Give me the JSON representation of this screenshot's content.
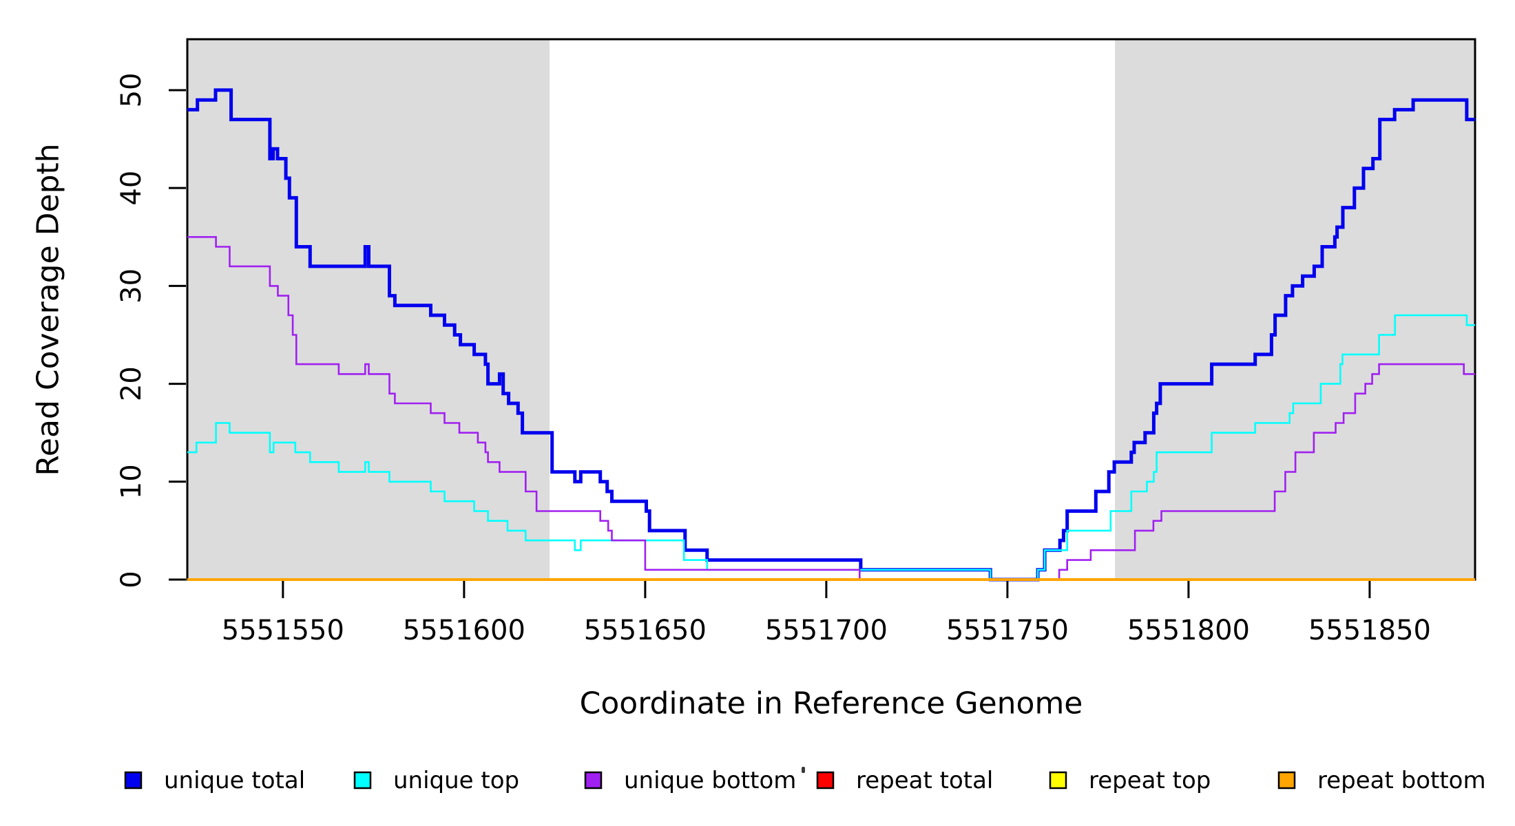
{
  "labels": {
    "ylabel": "Read Coverage Depth",
    "xlabel": "Coordinate in Reference Genome"
  },
  "axes": {
    "x_ticks": [
      5551550,
      5551600,
      5551650,
      5551700,
      5551750,
      5551800,
      5551850
    ],
    "y_ticks": [
      0,
      10,
      20,
      30,
      40,
      50
    ],
    "xlim": [
      5551523.6,
      5551879.1
    ],
    "ylim": [
      0,
      55.2
    ]
  },
  "plot": {
    "band_color": "#DCDCDC",
    "background": "#FFFFFF",
    "border_color": "#000000",
    "shaded_regions": [
      {
        "from": 5551523.6,
        "to": 5551623.6
      },
      {
        "from": 5551779.7,
        "to": 5551879.1
      }
    ]
  },
  "legend": {
    "items": [
      {
        "id": "unique-total",
        "label": "unique total",
        "color": "#0000EE"
      },
      {
        "id": "unique-top",
        "label": "unique top",
        "color": "#00FFFF"
      },
      {
        "id": "unique-bottom",
        "label": "unique bottom",
        "color": "#A020F0"
      },
      {
        "id": "repeat-total",
        "label": "repeat total",
        "color": "#FF0000"
      },
      {
        "id": "repeat-top",
        "label": "repeat top",
        "color": "#FFFF00"
      },
      {
        "id": "repeat-bottom",
        "label": "repeat bottom",
        "color": "#FFA500"
      }
    ]
  },
  "chart_data": {
    "type": "step-line",
    "title": "",
    "xlabel": "Coordinate in Reference Genome",
    "ylabel": "Read Coverage Depth",
    "xlim": [
      5551523.6,
      5551879.1
    ],
    "ylim": [
      0,
      55.2
    ],
    "grid": false,
    "legend_position": "bottom",
    "series": [
      {
        "id": "unique-total",
        "name": "unique total",
        "color": "#0000EE",
        "width": 5,
        "points": [
          [
            5551523.6,
            48
          ],
          [
            5551526.4,
            49
          ],
          [
            5551531.4,
            50
          ],
          [
            5551535.7,
            47
          ],
          [
            5551546.4,
            43
          ],
          [
            5551547.3,
            44
          ],
          [
            5551548.5,
            43
          ],
          [
            5551550.8,
            41
          ],
          [
            5551551.8,
            39
          ],
          [
            5551553.7,
            34
          ],
          [
            5551557.5,
            32
          ],
          [
            5551572.7,
            34
          ],
          [
            5551573.7,
            32
          ],
          [
            5551579.4,
            29
          ],
          [
            5551580.9,
            28
          ],
          [
            5551590.8,
            27
          ],
          [
            5551594.6,
            26
          ],
          [
            5551597.4,
            25
          ],
          [
            5551599.0,
            24
          ],
          [
            5551602.8,
            23
          ],
          [
            5551605.9,
            22
          ],
          [
            5551606.6,
            20
          ],
          [
            5551609.8,
            21
          ],
          [
            5551610.8,
            19
          ],
          [
            5551612.3,
            18
          ],
          [
            5551614.9,
            17
          ],
          [
            5551616.1,
            15
          ],
          [
            5551624.3,
            11
          ],
          [
            5551630.6,
            10
          ],
          [
            5551632.2,
            11
          ],
          [
            5551637.6,
            10
          ],
          [
            5551639.5,
            9
          ],
          [
            5551640.8,
            8
          ],
          [
            5551650.3,
            7
          ],
          [
            5551651.2,
            5
          ],
          [
            5551661.0,
            3
          ],
          [
            5551667.1,
            2
          ],
          [
            5551709.5,
            1
          ],
          [
            5551745.3,
            0
          ],
          [
            5551758.4,
            1
          ],
          [
            5551760.3,
            3
          ],
          [
            5551764.5,
            4
          ],
          [
            5551765.5,
            5
          ],
          [
            5551766.5,
            7
          ],
          [
            5551774.4,
            9
          ],
          [
            5551778.0,
            11
          ],
          [
            5551779.5,
            12
          ],
          [
            5551784.2,
            13
          ],
          [
            5551785.0,
            14
          ],
          [
            5551788.0,
            15
          ],
          [
            5551790.4,
            17
          ],
          [
            5551791.2,
            18
          ],
          [
            5551792.2,
            20
          ],
          [
            5551806.4,
            22
          ],
          [
            5551818.4,
            23
          ],
          [
            5551822.9,
            25
          ],
          [
            5551823.9,
            27
          ],
          [
            5551826.8,
            29
          ],
          [
            5551828.7,
            30
          ],
          [
            5551831.5,
            31
          ],
          [
            5551834.7,
            32
          ],
          [
            5551836.9,
            34
          ],
          [
            5551840.4,
            35
          ],
          [
            5551841.0,
            36
          ],
          [
            5551842.6,
            38
          ],
          [
            5551845.8,
            40
          ],
          [
            5551848.3,
            42
          ],
          [
            5551850.9,
            43
          ],
          [
            5551852.8,
            47
          ],
          [
            5551856.9,
            48
          ],
          [
            5551862.0,
            49
          ],
          [
            5551876.8,
            47
          ]
        ]
      },
      {
        "id": "unique-top",
        "name": "unique top",
        "color": "#00FFFF",
        "width": 2.6,
        "points": [
          [
            5551523.6,
            13
          ],
          [
            5551526.1,
            14
          ],
          [
            5551531.5,
            16
          ],
          [
            5551535.3,
            15
          ],
          [
            5551546.4,
            13
          ],
          [
            5551547.4,
            14
          ],
          [
            5551553.4,
            13
          ],
          [
            5551557.5,
            12
          ],
          [
            5551565.4,
            11
          ],
          [
            5551572.7,
            12
          ],
          [
            5551573.7,
            11
          ],
          [
            5551579.4,
            10
          ],
          [
            5551590.8,
            9
          ],
          [
            5551594.6,
            8
          ],
          [
            5551602.8,
            7
          ],
          [
            5551606.6,
            6
          ],
          [
            5551612.0,
            5
          ],
          [
            5551617.0,
            4
          ],
          [
            5551630.6,
            3
          ],
          [
            5551632.2,
            4
          ],
          [
            5551660.7,
            2
          ],
          [
            5551667.1,
            1
          ],
          [
            5551745.3,
            0
          ],
          [
            5551758.4,
            1
          ],
          [
            5551760.3,
            3
          ],
          [
            5551766.5,
            5
          ],
          [
            5551778.5,
            7
          ],
          [
            5551784.2,
            9
          ],
          [
            5551788.5,
            10
          ],
          [
            5551790.4,
            11
          ],
          [
            5551791.2,
            13
          ],
          [
            5551806.4,
            15
          ],
          [
            5551818.4,
            16
          ],
          [
            5551827.9,
            17
          ],
          [
            5551828.9,
            18
          ],
          [
            5551836.5,
            20
          ],
          [
            5551841.9,
            22
          ],
          [
            5551842.5,
            23
          ],
          [
            5551852.6,
            25
          ],
          [
            5551857.0,
            27
          ],
          [
            5551876.8,
            26
          ]
        ]
      },
      {
        "id": "unique-bottom",
        "name": "unique bottom",
        "color": "#A020F0",
        "width": 2.6,
        "points": [
          [
            5551523.6,
            35
          ],
          [
            5551531.5,
            34
          ],
          [
            5551535.3,
            32
          ],
          [
            5551546.4,
            30
          ],
          [
            5551548.6,
            29
          ],
          [
            5551551.5,
            27
          ],
          [
            5551552.7,
            25
          ],
          [
            5551553.7,
            22
          ],
          [
            5551565.4,
            21
          ],
          [
            5551572.7,
            22
          ],
          [
            5551573.7,
            21
          ],
          [
            5551579.4,
            19
          ],
          [
            5551580.9,
            18
          ],
          [
            5551590.8,
            17
          ],
          [
            5551594.6,
            16
          ],
          [
            5551598.7,
            15
          ],
          [
            5551603.8,
            14
          ],
          [
            5551605.9,
            13
          ],
          [
            5551606.6,
            12
          ],
          [
            5551609.8,
            11
          ],
          [
            5551617.0,
            9
          ],
          [
            5551620.0,
            7
          ],
          [
            5551637.6,
            6
          ],
          [
            5551639.8,
            5
          ],
          [
            5551640.8,
            4
          ],
          [
            5551650.0,
            1
          ],
          [
            5551709.2,
            0
          ],
          [
            5551764.3,
            1
          ],
          [
            5551766.5,
            2
          ],
          [
            5551773.0,
            3
          ],
          [
            5551785.2,
            5
          ],
          [
            5551790.3,
            6
          ],
          [
            5551792.5,
            7
          ],
          [
            5551823.8,
            9
          ],
          [
            5551826.7,
            11
          ],
          [
            5551829.5,
            13
          ],
          [
            5551834.6,
            15
          ],
          [
            5551840.6,
            16
          ],
          [
            5551842.8,
            17
          ],
          [
            5551846.0,
            19
          ],
          [
            5551848.8,
            20
          ],
          [
            5551850.7,
            21
          ],
          [
            5551852.6,
            22
          ],
          [
            5551876.0,
            21
          ]
        ]
      },
      {
        "id": "repeat-total",
        "name": "repeat total",
        "color": "#FF0000",
        "width": 2.6,
        "points": [
          [
            5551523.6,
            0
          ]
        ]
      },
      {
        "id": "repeat-top",
        "name": "repeat top",
        "color": "#FFFF00",
        "width": 2.6,
        "points": [
          [
            5551523.6,
            0
          ]
        ]
      },
      {
        "id": "repeat-bottom",
        "name": "repeat bottom",
        "color": "#FFA500",
        "width": 4,
        "points": [
          [
            5551523.6,
            0
          ]
        ]
      }
    ]
  }
}
